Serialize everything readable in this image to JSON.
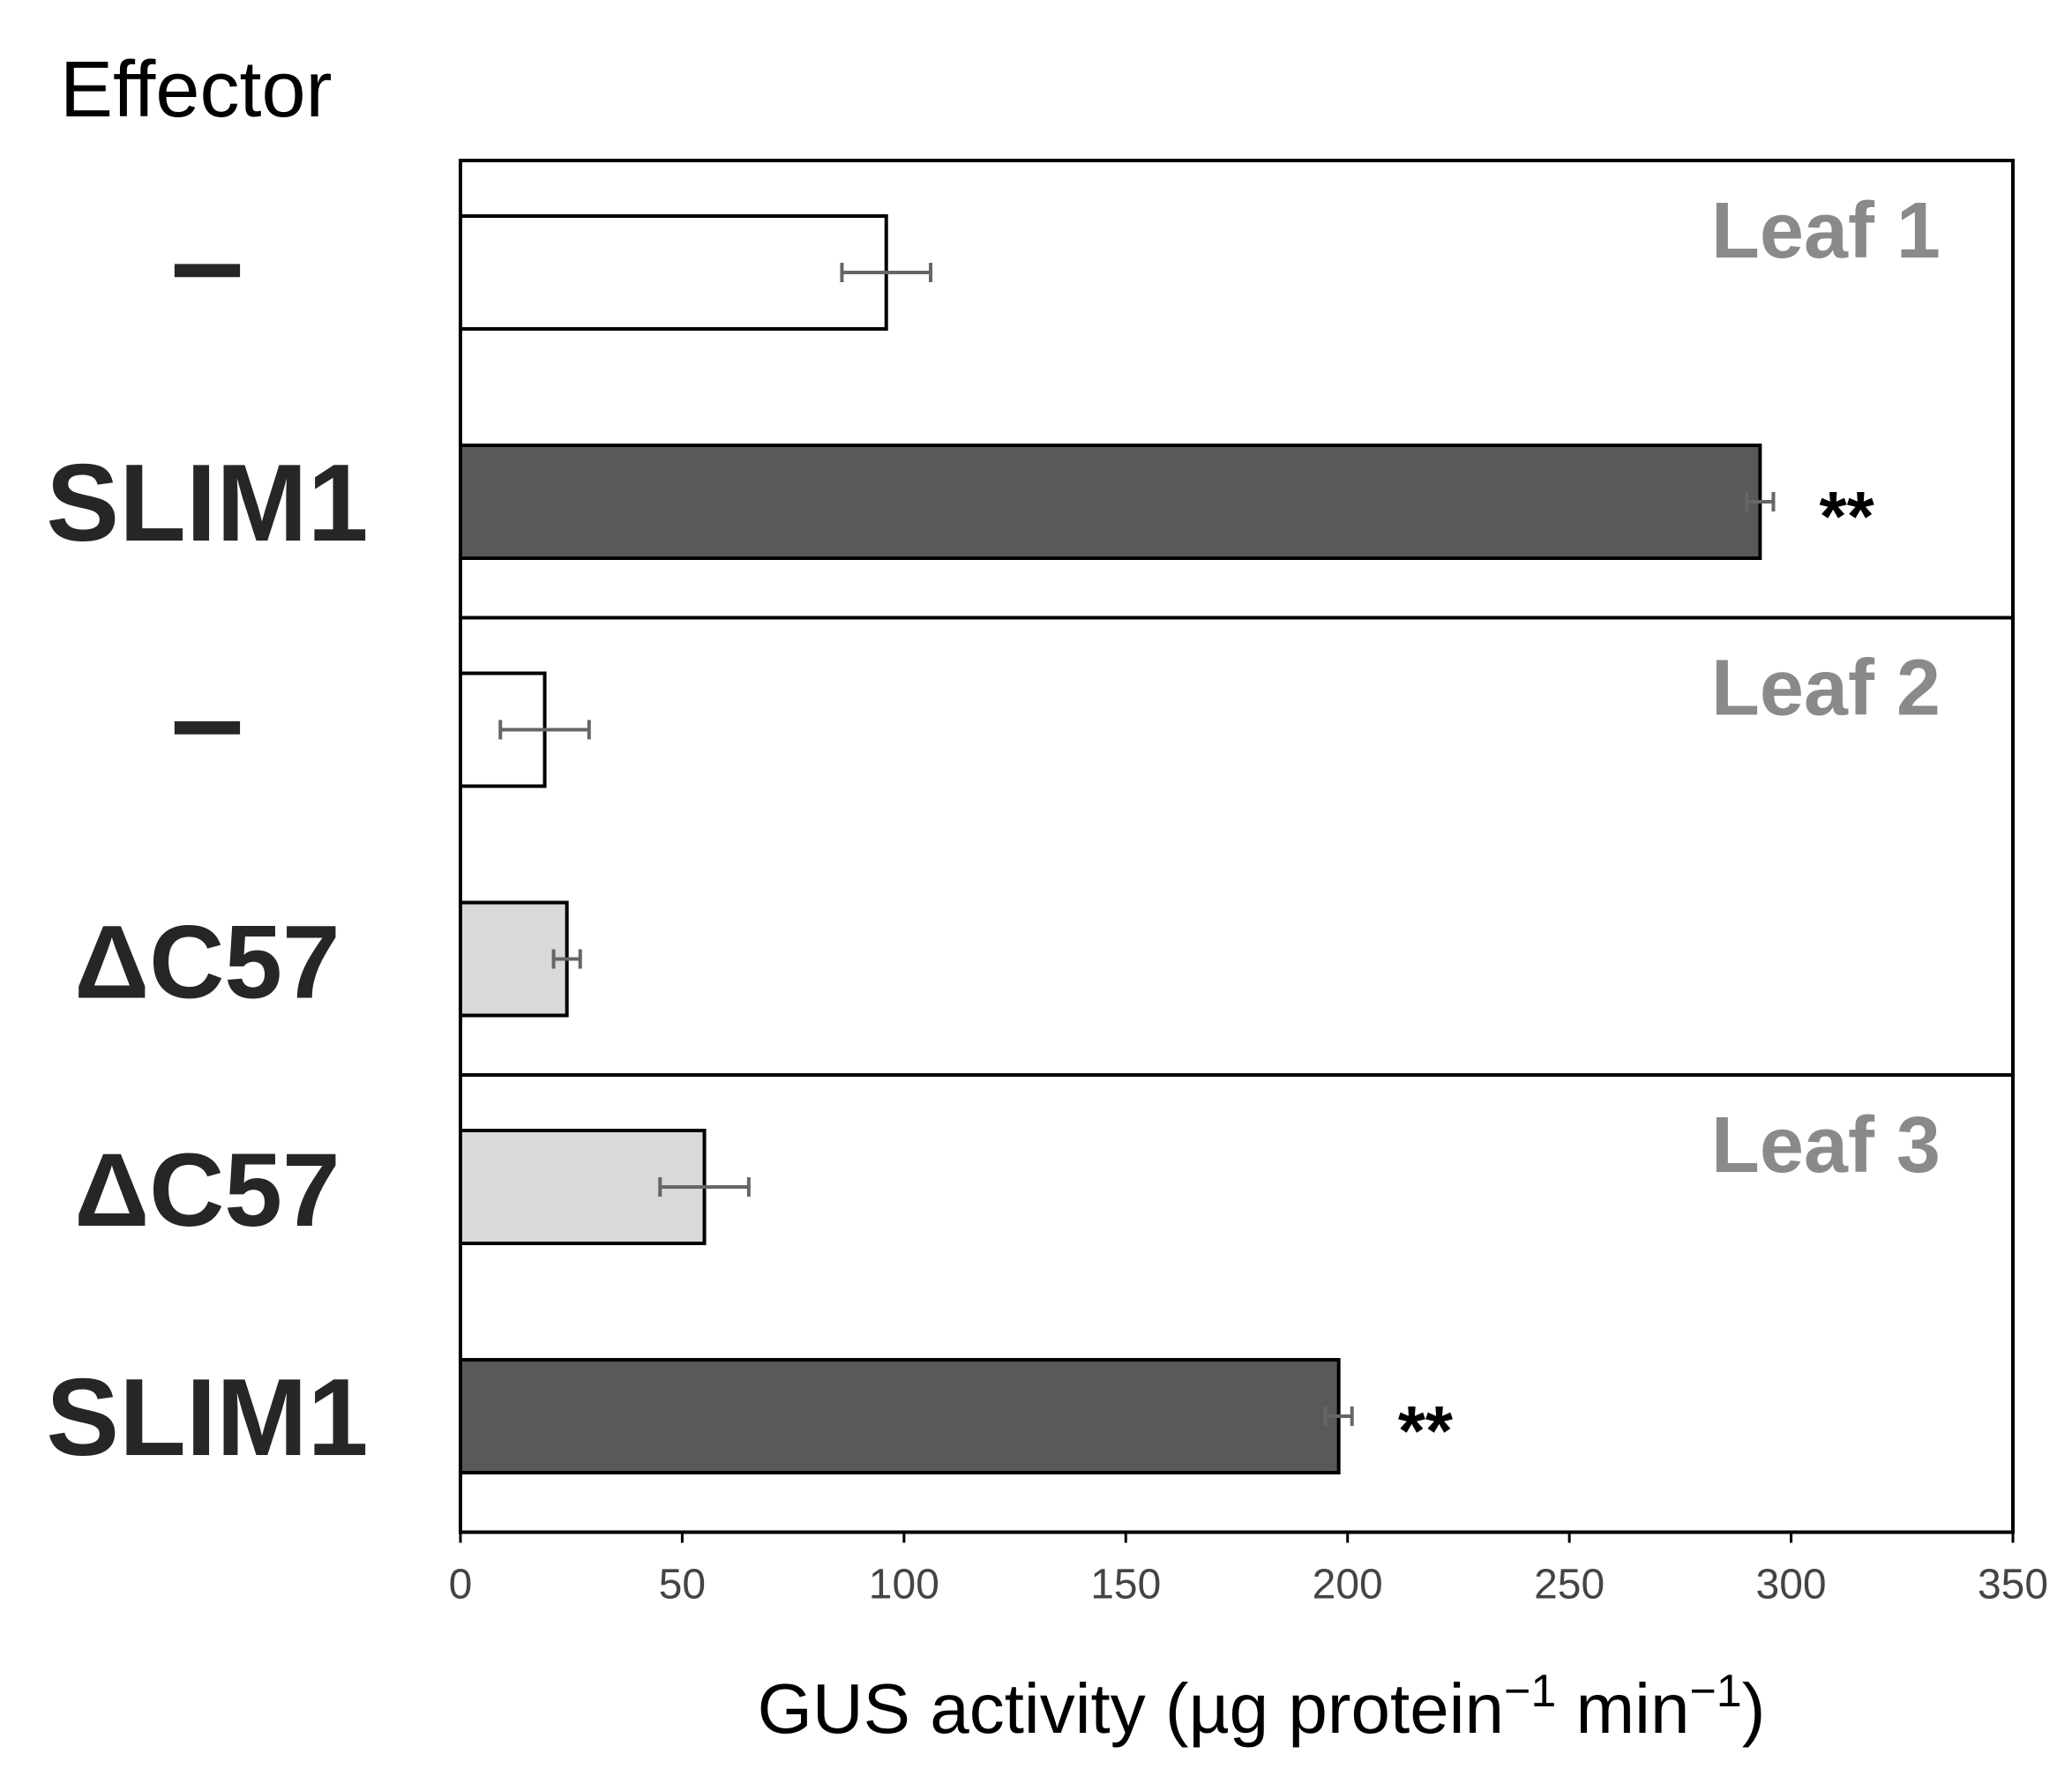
{
  "chart_data": {
    "type": "bar",
    "orientation": "horizontal",
    "effector_header": "Effector",
    "xlabel": "GUS activity (µg protein",
    "xlabel_sup1": "−1",
    "xlabel_mid": " min",
    "xlabel_sup2": "−1",
    "xlabel_end": ")",
    "xlim": [
      0,
      350
    ],
    "xticks": [
      0,
      50,
      100,
      150,
      200,
      250,
      300,
      350
    ],
    "grid": false,
    "panels": [
      {
        "label": "Leaf 1",
        "bars": [
          {
            "category": "–",
            "value": 96,
            "error": 10,
            "fill": "#ffffff",
            "significance": ""
          },
          {
            "category": "SLIM1",
            "value": 293,
            "error": 3,
            "fill": "#595959",
            "significance": "**"
          }
        ]
      },
      {
        "label": "Leaf 2",
        "bars": [
          {
            "category": "–",
            "value": 19,
            "error": 10,
            "fill": "#ffffff",
            "significance": ""
          },
          {
            "category": "ΔC57",
            "value": 24,
            "error": 3,
            "fill": "#d9d9d9",
            "significance": ""
          }
        ]
      },
      {
        "label": "Leaf 3",
        "bars": [
          {
            "category": "ΔC57",
            "value": 55,
            "error": 10,
            "fill": "#d9d9d9",
            "significance": ""
          },
          {
            "category": "SLIM1",
            "value": 198,
            "error": 3,
            "fill": "#595959",
            "significance": "**"
          }
        ]
      }
    ]
  }
}
